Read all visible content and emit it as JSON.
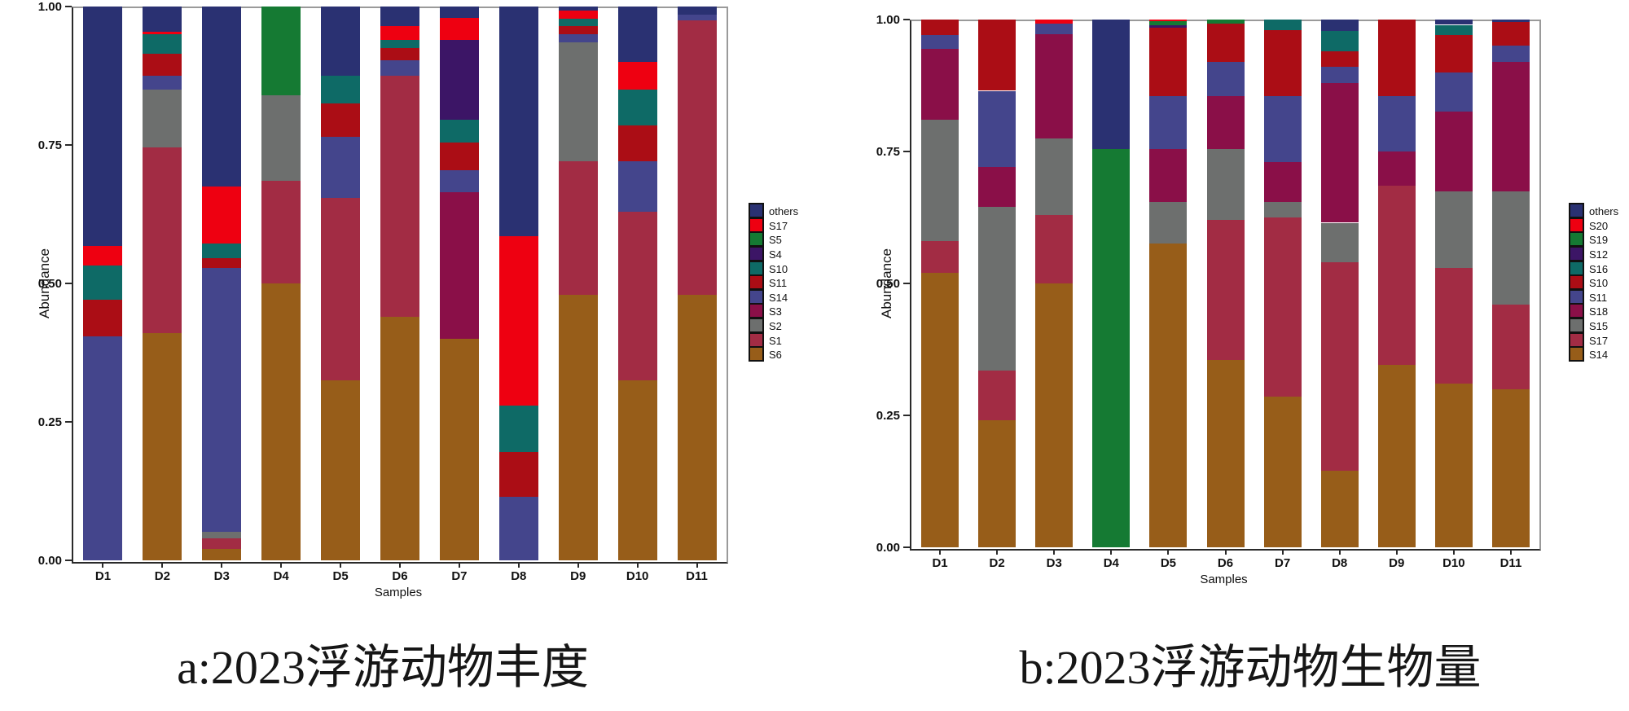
{
  "figure": {
    "background": "#ffffff",
    "captions": {
      "a": "a:2023浮游动物丰度",
      "b": "b:2023浮游动物生物量"
    }
  },
  "chart_data": [
    {
      "type": "bar",
      "stacked": true,
      "title": "",
      "caption": "a:2023浮游动物丰度",
      "xlabel": "Samples",
      "ylabel": "Abundance",
      "ylim": [
        0,
        1.0
      ],
      "yticks": [
        "1.00",
        "0.75",
        "0.50",
        "0.25",
        "0.00"
      ],
      "grid": false,
      "legend_position": "right",
      "legend_order_top_to_bottom": [
        "others",
        "S17",
        "S5",
        "S4",
        "S10",
        "S11",
        "S14",
        "S3",
        "S2",
        "S1",
        "S6"
      ],
      "categories": [
        "D1",
        "D2",
        "D3",
        "D4",
        "D5",
        "D6",
        "D7",
        "D8",
        "D9",
        "D10",
        "D11"
      ],
      "colors": {
        "others": "#2A3172",
        "S17": "#EE0011",
        "S5": "#157A33",
        "S4": "#3C1566",
        "S10": "#0E6A66",
        "S11": "#AB0D15",
        "S14": "#44458C",
        "S3": "#8A0F48",
        "S2": "#6D6F6E",
        "S1": "#A22C44",
        "S6": "#975D19"
      },
      "series": [
        {
          "name": "S6",
          "values": [
            0,
            0.41,
            0.02,
            0.5,
            0.325,
            0.44,
            0.4,
            0,
            0.48,
            0.325,
            0.48
          ]
        },
        {
          "name": "S1",
          "values": [
            0,
            0.335,
            0.02,
            0.185,
            0.33,
            0.435,
            0,
            0,
            0.24,
            0.305,
            0.495
          ]
        },
        {
          "name": "S2",
          "values": [
            0,
            0.105,
            0.012,
            0.155,
            0,
            0,
            0,
            0,
            0.215,
            0,
            0
          ]
        },
        {
          "name": "S3",
          "values": [
            0,
            0,
            0,
            0,
            0,
            0,
            0.265,
            0,
            0,
            0,
            0
          ]
        },
        {
          "name": "S14",
          "values": [
            0.405,
            0.025,
            0.476,
            0,
            0.11,
            0.028,
            0.04,
            0.115,
            0.015,
            0.09,
            0.01
          ]
        },
        {
          "name": "S11",
          "values": [
            0.065,
            0.04,
            0.018,
            0,
            0.06,
            0.022,
            0.05,
            0.08,
            0.015,
            0.065,
            0
          ]
        },
        {
          "name": "S10",
          "values": [
            0.062,
            0.035,
            0.026,
            0,
            0.05,
            0.015,
            0.04,
            0.085,
            0.013,
            0.065,
            0
          ]
        },
        {
          "name": "S4",
          "values": [
            0,
            0,
            0,
            0,
            0,
            0,
            0.145,
            0,
            0,
            0,
            0
          ]
        },
        {
          "name": "S5",
          "values": [
            0,
            0,
            0,
            0.16,
            0,
            0,
            0,
            0,
            0,
            0,
            0
          ]
        },
        {
          "name": "S17",
          "values": [
            0.035,
            0.005,
            0.103,
            0,
            0,
            0.025,
            0.04,
            0.305,
            0.015,
            0.05,
            0
          ]
        },
        {
          "name": "others",
          "values": [
            0.433,
            0.045,
            0.325,
            0,
            0.125,
            0.035,
            0.02,
            0.415,
            0.007,
            0.1,
            0.015
          ]
        }
      ]
    },
    {
      "type": "bar",
      "stacked": true,
      "title": "",
      "caption": "b:2023浮游动物生物量",
      "xlabel": "Samples",
      "ylabel": "Abundance",
      "ylim": [
        0,
        1.0
      ],
      "yticks": [
        "1.00",
        "0.75",
        "0.50",
        "0.25",
        "0.00"
      ],
      "grid": false,
      "legend_position": "right",
      "legend_order_top_to_bottom": [
        "others",
        "S20",
        "S19",
        "S12",
        "S16",
        "S10",
        "S11",
        "S18",
        "S15",
        "S17",
        "S14"
      ],
      "categories": [
        "D1",
        "D2",
        "D3",
        "D4",
        "D5",
        "D6",
        "D7",
        "D8",
        "D9",
        "D10",
        "D11"
      ],
      "colors": {
        "others": "#2A3172",
        "S20": "#EE0011",
        "S19": "#157A33",
        "S12": "#3C1566",
        "S16": "#0E6A66",
        "S10": "#AB0D15",
        "S11": "#44458C",
        "S18": "#8A0F48",
        "S15": "#6D6F6E",
        "S17": "#A22C44",
        "S14": "#975D19"
      },
      "series": [
        {
          "name": "S14",
          "values": [
            0.52,
            0.24,
            0.5,
            0,
            0.575,
            0.355,
            0.285,
            0.145,
            0.345,
            0.31,
            0.3
          ]
        },
        {
          "name": "S17",
          "values": [
            0.06,
            0.095,
            0.13,
            0,
            0,
            0.265,
            0.34,
            0.395,
            0.34,
            0.22,
            0.16
          ]
        },
        {
          "name": "S15",
          "values": [
            0.23,
            0.31,
            0.145,
            0,
            0.08,
            0.135,
            0.03,
            0.075,
            0,
            0.145,
            0.215
          ]
        },
        {
          "name": "S18",
          "values": [
            0.135,
            0.075,
            0.197,
            0,
            0.1,
            0.1,
            0.075,
            0.265,
            0.065,
            0.15,
            0.245
          ]
        },
        {
          "name": "S11",
          "values": [
            0.025,
            0.145,
            0.021,
            0,
            0.1,
            0.065,
            0.125,
            0.03,
            0.105,
            0.075,
            0.03
          ]
        },
        {
          "name": "S10",
          "values": [
            0.03,
            0.135,
            0,
            0,
            0.13,
            0.072,
            0.125,
            0.03,
            0.145,
            0.07,
            0.045
          ]
        },
        {
          "name": "S16",
          "values": [
            0,
            0,
            0,
            0,
            0,
            0,
            0.02,
            0.038,
            0,
            0.02,
            0
          ]
        },
        {
          "name": "S12",
          "values": [
            0,
            0,
            0,
            0,
            0.004,
            0,
            0,
            0,
            0,
            0,
            0
          ]
        },
        {
          "name": "S19",
          "values": [
            0,
            0,
            0,
            0.755,
            0.008,
            0.008,
            0,
            0,
            0,
            0,
            0
          ]
        },
        {
          "name": "S20",
          "values": [
            0,
            0,
            0.007,
            0,
            0.003,
            0,
            0,
            0,
            0,
            0,
            0
          ]
        },
        {
          "name": "others",
          "values": [
            0,
            0,
            0,
            0.245,
            0,
            0,
            0,
            0.022,
            0,
            0.01,
            0.005
          ]
        }
      ]
    }
  ]
}
